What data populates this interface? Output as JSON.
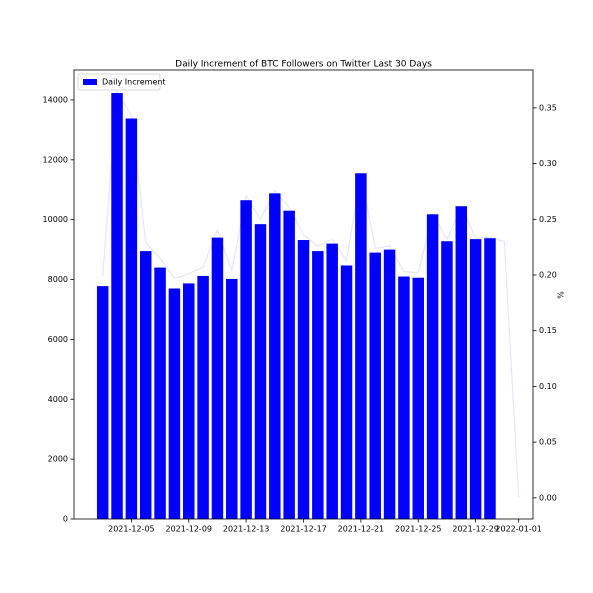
{
  "chart_data": {
    "type": "bar",
    "title": "Daily Increment of BTC Followers on Twitter Last 30 Days",
    "y2_label": "%",
    "series": [
      {
        "name": "Daily Increment",
        "type": "bar",
        "color": "#0000ff",
        "x": [
          "2021-12-03",
          "2021-12-04",
          "2021-12-05",
          "2021-12-06",
          "2021-12-07",
          "2021-12-08",
          "2021-12-09",
          "2021-12-10",
          "2021-12-11",
          "2021-12-12",
          "2021-12-13",
          "2021-12-14",
          "2021-12-15",
          "2021-12-16",
          "2021-12-17",
          "2021-12-18",
          "2021-12-19",
          "2021-12-20",
          "2021-12-21",
          "2021-12-22",
          "2021-12-23",
          "2021-12-24",
          "2021-12-25",
          "2021-12-26",
          "2021-12-27",
          "2021-12-28",
          "2021-12-29",
          "2021-12-30"
        ],
        "values": [
          7780,
          14230,
          13380,
          8950,
          8400,
          7700,
          7870,
          8120,
          9400,
          8020,
          10650,
          9850,
          10880,
          10300,
          9320,
          8950,
          9200,
          8470,
          11550,
          8900,
          9000,
          8100,
          8060,
          10180,
          9280,
          10450,
          9350,
          9380
        ]
      },
      {
        "type": "line",
        "color": "#e6e6fa",
        "axis": "y2",
        "x": [
          "2021-12-03",
          "2021-12-04",
          "2021-12-05",
          "2021-12-06",
          "2021-12-07",
          "2021-12-08",
          "2021-12-09",
          "2021-12-10",
          "2021-12-11",
          "2021-12-12",
          "2021-12-13",
          "2021-12-14",
          "2021-12-15",
          "2021-12-16",
          "2021-12-17",
          "2021-12-18",
          "2021-12-19",
          "2021-12-20",
          "2021-12-21",
          "2021-12-22",
          "2021-12-23",
          "2021-12-24",
          "2021-12-25",
          "2021-12-26",
          "2021-12-27",
          "2021-12-28",
          "2021-12-29",
          "2021-12-30",
          "2021-12-31",
          "2022-01-01"
        ],
        "values": [
          0.199,
          0.365,
          0.343,
          0.229,
          0.215,
          0.197,
          0.201,
          0.207,
          0.24,
          0.204,
          0.271,
          0.25,
          0.276,
          0.261,
          0.236,
          0.226,
          0.232,
          0.213,
          0.291,
          0.224,
          0.226,
          0.203,
          0.202,
          0.255,
          0.232,
          0.261,
          0.233,
          0.234,
          0.23,
          0
        ]
      }
    ],
    "xlim": [
      "2021-12-01",
      "2022-01-02"
    ],
    "xticks": [
      "2021-12-05",
      "2021-12-09",
      "2021-12-13",
      "2021-12-17",
      "2021-12-21",
      "2021-12-25",
      "2021-12-29",
      "2022-01-01"
    ],
    "ylim": [
      0,
      15000
    ],
    "yticks": [
      0,
      2000,
      4000,
      6000,
      8000,
      10000,
      12000,
      14000
    ],
    "y2lim": [
      -0.019,
      0.384
    ],
    "y2ticks": [
      {
        "value": 0,
        "label": "0.00"
      },
      0.05,
      {
        "value": 0.1,
        "label": "0.10"
      },
      0.15,
      {
        "value": 0.2,
        "label": "0.20"
      },
      0.25,
      {
        "value": 0.3,
        "label": "0.30"
      },
      0.35
    ],
    "legend": "upper left"
  }
}
